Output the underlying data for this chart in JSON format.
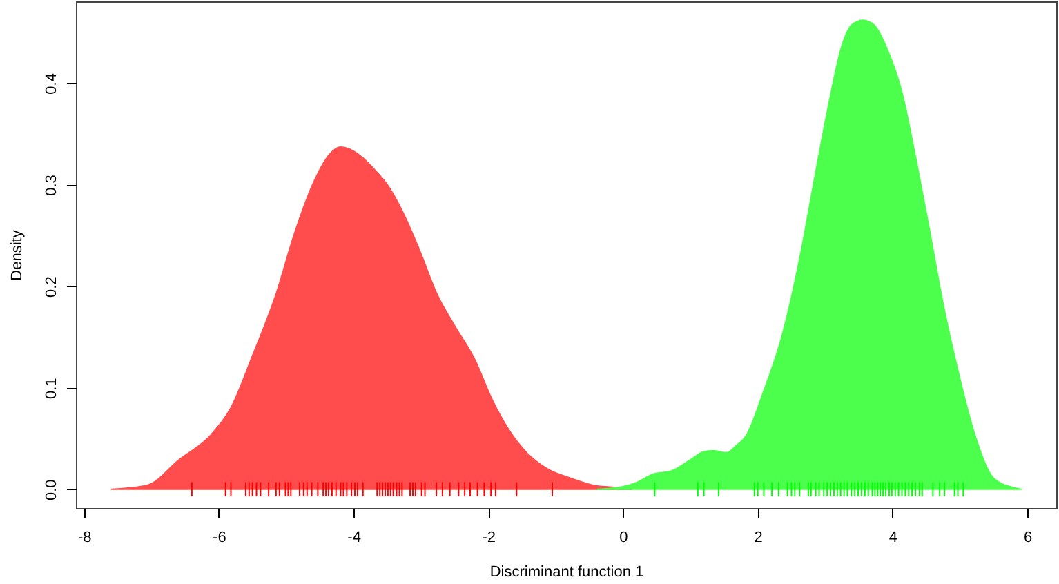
{
  "chart_data": {
    "type": "area",
    "xlabel": "Discriminant function 1",
    "ylabel": "Density",
    "xlim": [
      -8.12,
      6.43
    ],
    "ylim": [
      -0.0185,
      0.4805
    ],
    "xticks": [
      -8,
      -6,
      -4,
      -2,
      0,
      2,
      4,
      6
    ],
    "yticks": [
      {
        "value": 0,
        "label": "0.0"
      },
      0.1,
      0.2,
      0.3,
      0.4
    ],
    "series": [
      {
        "color": "#ff4d4d",
        "x": [
          -7.59,
          -7.06,
          -6.59,
          -6.11,
          -5.83,
          -5.49,
          -5.15,
          -4.88,
          -4.6,
          -4.4,
          -4.19,
          -4.06,
          -3.65,
          -3.51,
          -3.24,
          -3.03,
          -2.76,
          -2.49,
          -2.21,
          -1.94,
          -1.67,
          -1.4,
          -1.12,
          -0.78,
          -0.44,
          -0.17,
          0.12
        ],
        "values": [
          0,
          0.004,
          0.029,
          0.054,
          0.079,
          0.133,
          0.192,
          0.251,
          0.301,
          0.326,
          0.337,
          0.335,
          0.312,
          0.301,
          0.269,
          0.237,
          0.192,
          0.16,
          0.129,
          0.088,
          0.056,
          0.034,
          0.02,
          0.011,
          0.004,
          0.002,
          0
        ]
      },
      {
        "color": "#4dff4d",
        "x": [
          -0.38,
          -0.04,
          0.18,
          0.45,
          0.72,
          1.0,
          1.2,
          1.34,
          1.54,
          1.68,
          1.82,
          2.09,
          2.36,
          2.64,
          2.84,
          3.05,
          3.25,
          3.39,
          3.56,
          3.73,
          3.93,
          4.14,
          4.34,
          4.55,
          4.75,
          4.96,
          5.23,
          5.5,
          5.78,
          5.91
        ],
        "values": [
          0,
          0.002,
          0.006,
          0.015,
          0.018,
          0.029,
          0.037,
          0.038,
          0.036,
          0.043,
          0.052,
          0.097,
          0.151,
          0.233,
          0.305,
          0.378,
          0.437,
          0.457,
          0.462,
          0.457,
          0.432,
          0.391,
          0.328,
          0.255,
          0.183,
          0.12,
          0.052,
          0.011,
          0.002,
          0
        ]
      },
      {
        "type": "bar",
        "color": "#ff0000",
        "x": [
          -6.4,
          -5.9,
          -5.82,
          -5.6,
          -5.55,
          -5.5,
          -5.44,
          -5.38,
          -5.26,
          -5.15,
          -5.1,
          -5.01,
          -4.97,
          -4.93,
          -4.8,
          -4.74,
          -4.69,
          -4.62,
          -4.53,
          -4.45,
          -4.41,
          -4.37,
          -4.32,
          -4.26,
          -4.19,
          -4.15,
          -4.1,
          -4.03,
          -3.98,
          -3.94,
          -3.86,
          -3.65,
          -3.61,
          -3.57,
          -3.53,
          -3.49,
          -3.45,
          -3.41,
          -3.36,
          -3.32,
          -3.28,
          -3.16,
          -3.12,
          -3.08,
          -2.99,
          -2.94,
          -2.77,
          -2.68,
          -2.57,
          -2.44,
          -2.35,
          -2.27,
          -2.16,
          -2.06,
          -1.96,
          -1.89,
          -1.58,
          -1.05
        ],
        "base": [
          -0.007,
          -0.007,
          -0.007,
          -0.007,
          -0.007,
          -0.007,
          -0.007,
          -0.007,
          -0.007,
          -0.007,
          -0.007,
          -0.007,
          -0.007,
          -0.007,
          -0.007,
          -0.007,
          -0.007,
          -0.007,
          -0.007,
          -0.007,
          -0.007,
          -0.007,
          -0.007,
          -0.007,
          -0.007,
          -0.007,
          -0.007,
          -0.007,
          -0.007,
          -0.007,
          -0.007,
          -0.007,
          -0.007,
          -0.007,
          -0.007,
          -0.007,
          -0.007,
          -0.007,
          -0.007,
          -0.007,
          -0.007,
          -0.007,
          -0.007,
          -0.007,
          -0.007,
          -0.007,
          -0.007,
          -0.007,
          -0.007,
          -0.007,
          -0.007,
          -0.007,
          -0.007,
          -0.007,
          -0.007,
          -0.007,
          -0.007,
          -0.007
        ],
        "values": [
          0.014,
          0.014,
          0.014,
          0.014,
          0.014,
          0.014,
          0.014,
          0.014,
          0.014,
          0.014,
          0.014,
          0.014,
          0.014,
          0.014,
          0.014,
          0.014,
          0.014,
          0.014,
          0.014,
          0.014,
          0.014,
          0.014,
          0.014,
          0.014,
          0.014,
          0.014,
          0.014,
          0.014,
          0.014,
          0.014,
          0.014,
          0.014,
          0.014,
          0.014,
          0.014,
          0.014,
          0.014,
          0.014,
          0.014,
          0.014,
          0.014,
          0.014,
          0.014,
          0.014,
          0.014,
          0.014,
          0.014,
          0.014,
          0.014,
          0.014,
          0.014,
          0.014,
          0.014,
          0.014,
          0.014,
          0.014,
          0.014,
          0.014
        ]
      },
      {
        "type": "bar",
        "color": "#00ff00",
        "x": [
          0.47,
          1.11,
          1.2,
          1.42,
          1.95,
          2.0,
          2.09,
          2.21,
          2.31,
          2.44,
          2.5,
          2.55,
          2.62,
          2.75,
          2.79,
          2.86,
          2.91,
          2.98,
          3.03,
          3.08,
          3.13,
          3.18,
          3.23,
          3.28,
          3.33,
          3.39,
          3.44,
          3.49,
          3.54,
          3.59,
          3.64,
          3.7,
          3.74,
          3.78,
          3.82,
          3.86,
          3.9,
          3.95,
          3.99,
          4.04,
          4.09,
          4.14,
          4.19,
          4.24,
          4.29,
          4.34,
          4.4,
          4.44,
          4.6,
          4.7,
          4.77,
          4.92,
          4.97,
          5.05
        ],
        "base": [
          -0.007,
          -0.007,
          -0.007,
          -0.007,
          -0.007,
          -0.007,
          -0.007,
          -0.007,
          -0.007,
          -0.007,
          -0.007,
          -0.007,
          -0.007,
          -0.007,
          -0.007,
          -0.007,
          -0.007,
          -0.007,
          -0.007,
          -0.007,
          -0.007,
          -0.007,
          -0.007,
          -0.007,
          -0.007,
          -0.007,
          -0.007,
          -0.007,
          -0.007,
          -0.007,
          -0.007,
          -0.007,
          -0.007,
          -0.007,
          -0.007,
          -0.007,
          -0.007,
          -0.007,
          -0.007,
          -0.007,
          -0.007,
          -0.007,
          -0.007,
          -0.007,
          -0.007,
          -0.007,
          -0.007,
          -0.007,
          -0.007,
          -0.007,
          -0.007,
          -0.007,
          -0.007,
          -0.007
        ],
        "values": [
          0.014,
          0.014,
          0.014,
          0.014,
          0.014,
          0.014,
          0.014,
          0.014,
          0.014,
          0.014,
          0.014,
          0.014,
          0.014,
          0.014,
          0.014,
          0.014,
          0.014,
          0.014,
          0.014,
          0.014,
          0.014,
          0.014,
          0.014,
          0.014,
          0.014,
          0.014,
          0.014,
          0.014,
          0.014,
          0.014,
          0.014,
          0.014,
          0.014,
          0.014,
          0.014,
          0.014,
          0.014,
          0.014,
          0.014,
          0.014,
          0.014,
          0.014,
          0.014,
          0.014,
          0.014,
          0.014,
          0.014,
          0.014,
          0.014,
          0.014,
          0.014,
          0.014,
          0.014,
          0.014
        ]
      }
    ]
  }
}
